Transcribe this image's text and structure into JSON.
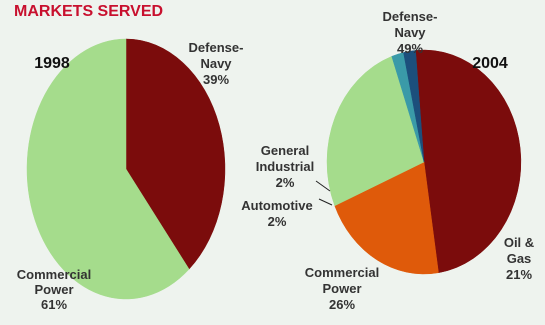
{
  "chart_data": {
    "title": "MARKETS SERVED",
    "type": "pie",
    "charts": [
      {
        "year": "1998",
        "slices": [
          {
            "label_lines": [
              "Defense-",
              "Navy",
              "39%"
            ],
            "value": 39,
            "color": "#7b0c0c"
          },
          {
            "label_lines": [
              "Commercial",
              "Power",
              "61%"
            ],
            "value": 61,
            "color": "#a5dc8c"
          }
        ]
      },
      {
        "year": "2004",
        "slices": [
          {
            "label_lines": [
              "Defense-",
              "Navy",
              "49%"
            ],
            "value": 49,
            "color": "#7b0c0c"
          },
          {
            "label_lines": [
              "Oil &",
              "Gas",
              "21%"
            ],
            "value": 21,
            "color": "#df5a0a"
          },
          {
            "label_lines": [
              "Commercial",
              "Power",
              "26%"
            ],
            "value": 26,
            "color": "#a5dc8c"
          },
          {
            "label_lines": [
              "Automotive",
              "2%"
            ],
            "value": 2,
            "color": "#3a9aa8"
          },
          {
            "label_lines": [
              "General",
              "Industrial",
              "2%"
            ],
            "value": 2,
            "color": "#1c4f7c"
          }
        ]
      }
    ]
  }
}
